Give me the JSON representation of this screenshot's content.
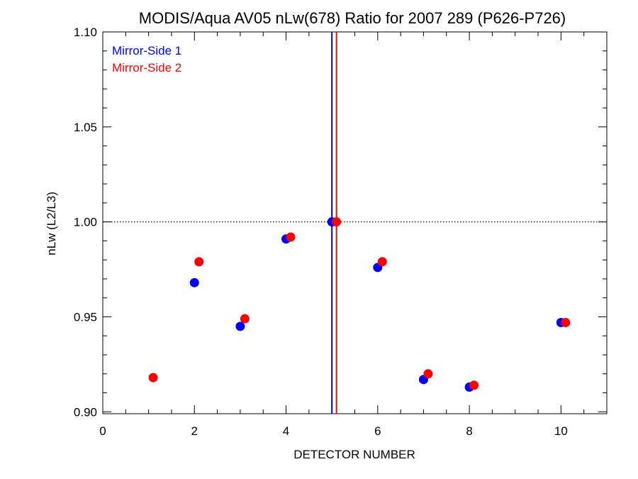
{
  "chart_data": {
    "type": "scatter",
    "title": "MODIS/Aqua AV05 nLw(678) Ratio for 2007 289 (P626-P726)",
    "xlabel": "DETECTOR NUMBER",
    "ylabel": "nLw (L2/L3)",
    "xlim": [
      0,
      11
    ],
    "ylim": [
      0.899,
      1.1
    ],
    "x_ticks": [
      0,
      2,
      4,
      6,
      8,
      10
    ],
    "x_tick_labels": [
      "0",
      "2",
      "4",
      "6",
      "8",
      "10"
    ],
    "y_ticks": [
      0.9,
      0.95,
      1.0,
      1.05,
      1.1
    ],
    "y_tick_labels": [
      "0.90",
      "0.95",
      "1.00",
      "1.05",
      "1.10"
    ],
    "legend_placement": "top-left",
    "reference_line_y": 1.0,
    "series": [
      {
        "name": "Mirror-Side 1",
        "color": "#0000ff",
        "vline_x": 5.0,
        "points": [
          [
            2,
            0.968
          ],
          [
            3,
            0.945
          ],
          [
            4,
            0.991
          ],
          [
            5,
            1.0
          ],
          [
            6,
            0.976
          ],
          [
            7,
            0.917
          ],
          [
            8,
            0.913
          ],
          [
            10,
            0.947
          ]
        ]
      },
      {
        "name": "Mirror-Side 2",
        "color": "#ff0000",
        "vline_x": 5.1,
        "points": [
          [
            1.1,
            0.918
          ],
          [
            2.1,
            0.979
          ],
          [
            3.1,
            0.949
          ],
          [
            4.1,
            0.992
          ],
          [
            5.1,
            1.0
          ],
          [
            6.1,
            0.979
          ],
          [
            7.1,
            0.92
          ],
          [
            8.1,
            0.914
          ],
          [
            10.1,
            0.947
          ]
        ]
      }
    ]
  }
}
